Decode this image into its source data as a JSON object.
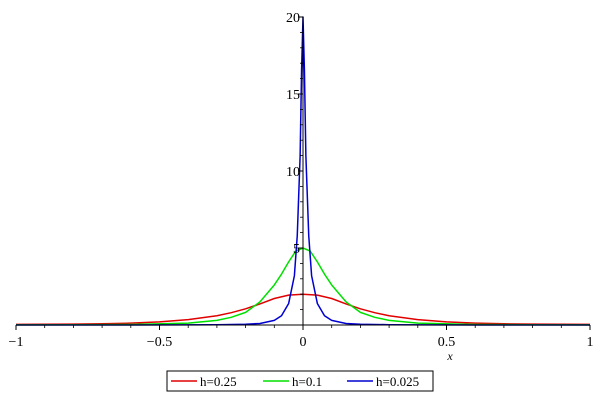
{
  "chart_data": {
    "type": "line",
    "title": "",
    "xlabel": "x",
    "ylabel": "",
    "xlim": [
      -1,
      1
    ],
    "ylim": [
      0,
      20
    ],
    "x_ticks": [
      -1,
      -0.5,
      0,
      0.5,
      1
    ],
    "x_tick_labels": [
      "−1",
      "−0.5",
      "0",
      "0.5",
      "1"
    ],
    "y_ticks": [
      5,
      10,
      15,
      20
    ],
    "y_tick_labels": [
      "5",
      "10",
      "15",
      "20"
    ],
    "grid": false,
    "legend_position": "bottom",
    "series": [
      {
        "name": "h=0.25",
        "color": "#e00000",
        "x": [
          -1,
          -0.9,
          -0.8,
          -0.7,
          -0.6,
          -0.5,
          -0.4,
          -0.3,
          -0.25,
          -0.2,
          -0.15,
          -0.1,
          -0.05,
          0,
          0.05,
          0.1,
          0.15,
          0.2,
          0.25,
          0.3,
          0.4,
          0.5,
          0.6,
          0.7,
          0.8,
          0.9,
          1
        ],
        "y": [
          0.04,
          0.05,
          0.06,
          0.08,
          0.12,
          0.2,
          0.35,
          0.6,
          0.8,
          1.05,
          1.37,
          1.72,
          1.94,
          2.0,
          1.94,
          1.72,
          1.37,
          1.05,
          0.8,
          0.6,
          0.35,
          0.2,
          0.12,
          0.08,
          0.06,
          0.05,
          0.04
        ]
      },
      {
        "name": "h=0.1",
        "color": "#00e000",
        "x": [
          -1,
          -0.8,
          -0.6,
          -0.4,
          -0.3,
          -0.25,
          -0.2,
          -0.15,
          -0.1,
          -0.075,
          -0.05,
          -0.025,
          0,
          0.025,
          0.05,
          0.075,
          0.1,
          0.15,
          0.2,
          0.25,
          0.3,
          0.4,
          0.6,
          0.8,
          1
        ],
        "y": [
          0.01,
          0.02,
          0.03,
          0.12,
          0.3,
          0.5,
          0.82,
          1.5,
          2.6,
          3.3,
          4.1,
          4.8,
          5.0,
          4.8,
          4.1,
          3.3,
          2.6,
          1.5,
          0.82,
          0.5,
          0.3,
          0.12,
          0.03,
          0.02,
          0.01
        ]
      },
      {
        "name": "h=0.025",
        "color": "#0000d0",
        "x": [
          -1,
          -0.6,
          -0.3,
          -0.2,
          -0.15,
          -0.1,
          -0.075,
          -0.05,
          -0.03,
          -0.02,
          -0.01,
          -0.005,
          0,
          0.005,
          0.01,
          0.02,
          0.03,
          0.05,
          0.075,
          0.1,
          0.15,
          0.2,
          0.3,
          0.6,
          1
        ],
        "y": [
          0.0,
          0.0,
          0.02,
          0.05,
          0.1,
          0.3,
          0.6,
          1.4,
          3.2,
          5.8,
          11.0,
          16.5,
          20.0,
          16.5,
          11.0,
          5.8,
          3.2,
          1.4,
          0.6,
          0.3,
          0.1,
          0.05,
          0.02,
          0.0,
          0.0
        ]
      }
    ]
  }
}
